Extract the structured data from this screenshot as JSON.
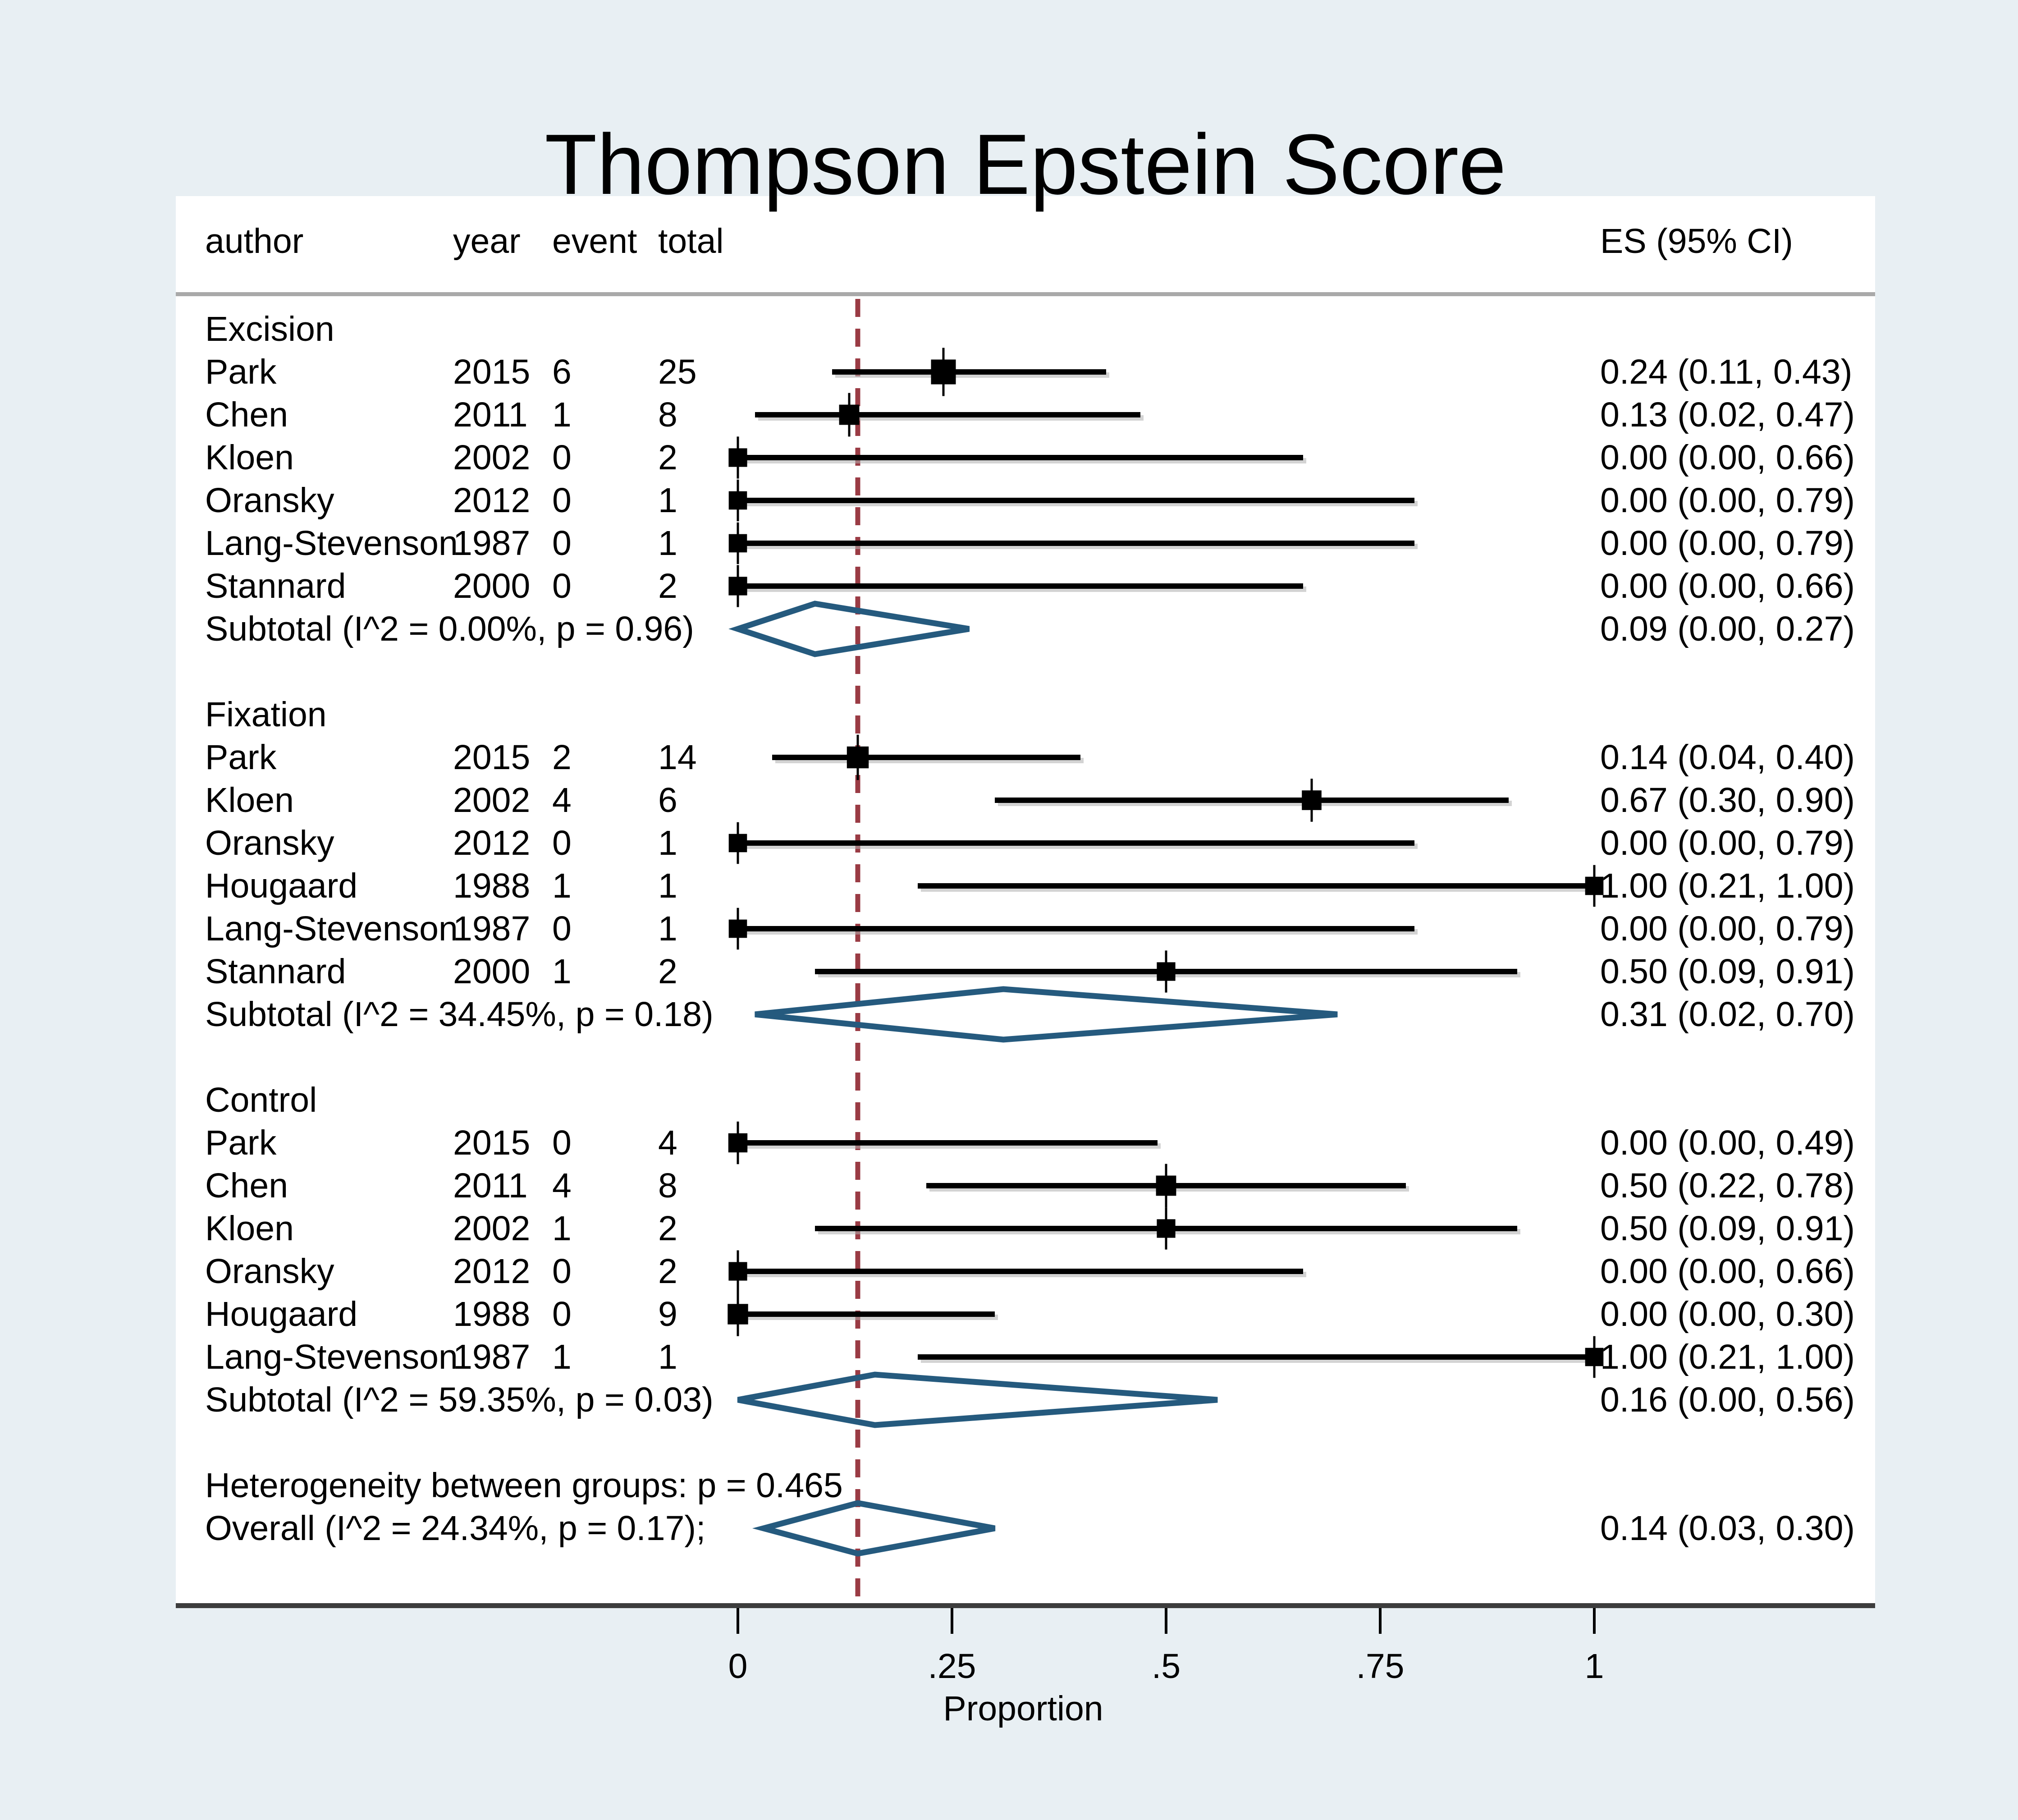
{
  "title": "Thompson Epstein Score",
  "columns": {
    "author": "author",
    "year": "year",
    "event": "event",
    "total": "total",
    "es": "ES (95% CI)"
  },
  "axis": {
    "label": "Proportion",
    "ticks": [
      "0",
      ".25",
      ".5",
      ".75",
      "1"
    ],
    "tick_values": [
      0,
      0.25,
      0.5,
      0.75,
      1
    ],
    "min": 0,
    "max": 1
  },
  "colors": {
    "background": "#e8eff3",
    "plot_background": "#ffffff",
    "title": "#24385a",
    "text": "#000000",
    "header_rule": "#a9a9a9",
    "axis_line": "#3d3d3d",
    "reference_line": "#9a3b44",
    "diamond": "#255a7e",
    "marker": "#000000",
    "shadow": "#b0b0b0"
  },
  "chart_data": {
    "type": "forest",
    "title": "Thompson Epstein Score",
    "xlabel": "Proportion",
    "xlim": [
      0,
      1
    ],
    "reference_value": 0.14,
    "groups": [
      {
        "label": "Excision",
        "studies": [
          {
            "author": "Park",
            "year": "2015",
            "event": "6",
            "total": "25",
            "es": 0.24,
            "lo": 0.11,
            "hi": 0.43,
            "es_text": "0.24 (0.11, 0.43)"
          },
          {
            "author": "Chen",
            "year": "2011",
            "event": "1",
            "total": "8",
            "es": 0.13,
            "lo": 0.02,
            "hi": 0.47,
            "es_text": "0.13 (0.02, 0.47)"
          },
          {
            "author": "Kloen",
            "year": "2002",
            "event": "0",
            "total": "2",
            "es": 0.0,
            "lo": 0.0,
            "hi": 0.66,
            "es_text": "0.00 (0.00, 0.66)"
          },
          {
            "author": "Oransky",
            "year": "2012",
            "event": "0",
            "total": "1",
            "es": 0.0,
            "lo": 0.0,
            "hi": 0.79,
            "es_text": "0.00 (0.00, 0.79)"
          },
          {
            "author": "Lang-Stevenson",
            "year": "1987",
            "event": "0",
            "total": "1",
            "es": 0.0,
            "lo": 0.0,
            "hi": 0.79,
            "es_text": "0.00 (0.00, 0.79)"
          },
          {
            "author": "Stannard",
            "year": "2000",
            "event": "0",
            "total": "2",
            "es": 0.0,
            "lo": 0.0,
            "hi": 0.66,
            "es_text": "0.00 (0.00, 0.66)"
          }
        ],
        "subtotal": {
          "label": "Subtotal  (I^2 = 0.00%, p = 0.96)",
          "es": 0.09,
          "lo": 0.0,
          "hi": 0.27,
          "es_text": "0.09 (0.00, 0.27)"
        }
      },
      {
        "label": "Fixation",
        "studies": [
          {
            "author": "Park",
            "year": "2015",
            "event": "2",
            "total": "14",
            "es": 0.14,
            "lo": 0.04,
            "hi": 0.4,
            "es_text": "0.14 (0.04, 0.40)"
          },
          {
            "author": "Kloen",
            "year": "2002",
            "event": "4",
            "total": "6",
            "es": 0.67,
            "lo": 0.3,
            "hi": 0.9,
            "es_text": "0.67 (0.30, 0.90)"
          },
          {
            "author": "Oransky",
            "year": "2012",
            "event": "0",
            "total": "1",
            "es": 0.0,
            "lo": 0.0,
            "hi": 0.79,
            "es_text": "0.00 (0.00, 0.79)"
          },
          {
            "author": "Hougaard",
            "year": "1988",
            "event": "1",
            "total": "1",
            "es": 1.0,
            "lo": 0.21,
            "hi": 1.0,
            "es_text": "1.00 (0.21, 1.00)"
          },
          {
            "author": "Lang-Stevenson",
            "year": "1987",
            "event": "0",
            "total": "1",
            "es": 0.0,
            "lo": 0.0,
            "hi": 0.79,
            "es_text": "0.00 (0.00, 0.79)"
          },
          {
            "author": "Stannard",
            "year": "2000",
            "event": "1",
            "total": "2",
            "es": 0.5,
            "lo": 0.09,
            "hi": 0.91,
            "es_text": "0.50 (0.09, 0.91)"
          }
        ],
        "subtotal": {
          "label": "Subtotal  (I^2 = 34.45%, p = 0.18)",
          "es": 0.31,
          "lo": 0.02,
          "hi": 0.7,
          "es_text": "0.31 (0.02, 0.70)"
        }
      },
      {
        "label": "Control",
        "studies": [
          {
            "author": "Park",
            "year": "2015",
            "event": "0",
            "total": "4",
            "es": 0.0,
            "lo": 0.0,
            "hi": 0.49,
            "es_text": "0.00 (0.00, 0.49)"
          },
          {
            "author": "Chen",
            "year": "2011",
            "event": "4",
            "total": "8",
            "es": 0.5,
            "lo": 0.22,
            "hi": 0.78,
            "es_text": "0.50 (0.22, 0.78)"
          },
          {
            "author": "Kloen",
            "year": "2002",
            "event": "1",
            "total": "2",
            "es": 0.5,
            "lo": 0.09,
            "hi": 0.91,
            "es_text": "0.50 (0.09, 0.91)"
          },
          {
            "author": "Oransky",
            "year": "2012",
            "event": "0",
            "total": "2",
            "es": 0.0,
            "lo": 0.0,
            "hi": 0.66,
            "es_text": "0.00 (0.00, 0.66)"
          },
          {
            "author": "Hougaard",
            "year": "1988",
            "event": "0",
            "total": "9",
            "es": 0.0,
            "lo": 0.0,
            "hi": 0.3,
            "es_text": "0.00 (0.00, 0.30)"
          },
          {
            "author": "Lang-Stevenson",
            "year": "1987",
            "event": "1",
            "total": "1",
            "es": 1.0,
            "lo": 0.21,
            "hi": 1.0,
            "es_text": "1.00 (0.21, 1.00)"
          }
        ],
        "subtotal": {
          "label": "Subtotal  (I^2 = 59.35%, p = 0.03)",
          "es": 0.16,
          "lo": 0.0,
          "hi": 0.56,
          "es_text": "0.16 (0.00, 0.56)"
        }
      }
    ],
    "heterogeneity_note": "Heterogeneity between groups: p = 0.465",
    "overall": {
      "label": "Overall  (I^2 = 24.34%, p = 0.17);",
      "es": 0.14,
      "lo": 0.03,
      "hi": 0.3,
      "es_text": "0.14 (0.03, 0.30)"
    }
  }
}
